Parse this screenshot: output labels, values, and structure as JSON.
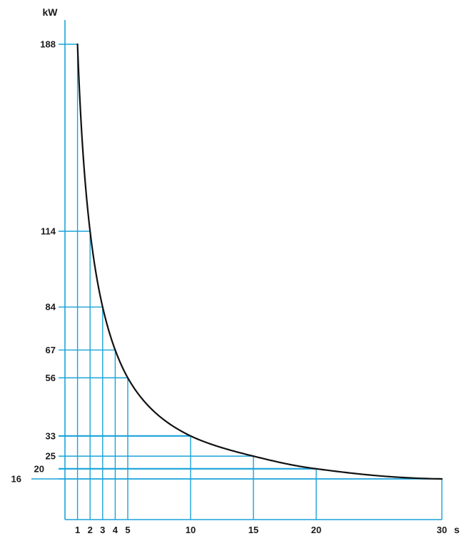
{
  "chart_data": {
    "type": "line",
    "title": "",
    "xlabel": "s",
    "ylabel": "kW",
    "x_ticks": [
      1,
      2,
      3,
      4,
      5,
      10,
      15,
      20,
      30
    ],
    "y_ticks": [
      16,
      20,
      25,
      33,
      56,
      67,
      84,
      114,
      188
    ],
    "xlim": [
      0,
      30
    ],
    "ylim": [
      16,
      188
    ],
    "series": [
      {
        "x": [
          1,
          2,
          3,
          4,
          5,
          10,
          15,
          20,
          30
        ],
        "y": [
          188,
          114,
          84,
          67,
          56,
          33,
          25,
          20,
          16
        ]
      }
    ],
    "grid": "reference lines at each marked point",
    "colors": {
      "grid": "#1aa3d9",
      "curve": "#111111",
      "text": "#1a1a1a"
    }
  }
}
